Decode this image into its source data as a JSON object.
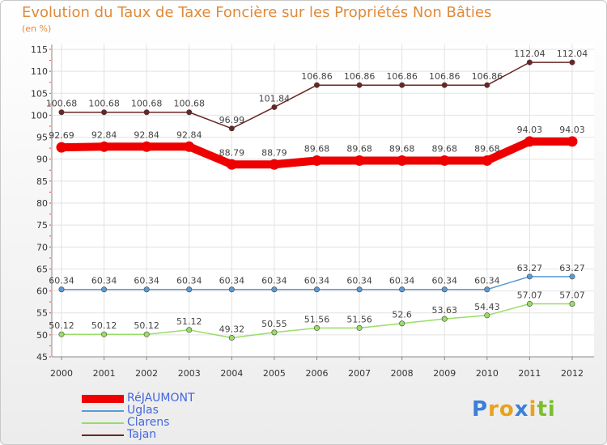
{
  "title": "Evolution du Taux de Taxe Foncière sur les Propriétés Non Bâties",
  "unit_label": "(en %)",
  "logo": {
    "text": "Proxiti",
    "letters": [
      "P",
      "r",
      "o",
      "x",
      "i",
      "t",
      "i"
    ],
    "colors": [
      "#3b7fd9",
      "#e8a21c",
      "#e8a21c",
      "#3b7fd9",
      "#e8a21c",
      "#7cbf2e",
      "#7cbf2e"
    ]
  },
  "chart_data": {
    "type": "line",
    "categories": [
      "2000",
      "2001",
      "2002",
      "2003",
      "2004",
      "2005",
      "2006",
      "2007",
      "2008",
      "2009",
      "2010",
      "2011",
      "2012"
    ],
    "ylim": [
      45,
      115
    ],
    "y_ticks": [
      45,
      50,
      55,
      60,
      65,
      70,
      75,
      80,
      85,
      90,
      95,
      100,
      105,
      110,
      115
    ],
    "grid": true,
    "legend_position": "bottom-left",
    "series": [
      {
        "name": "Tajan",
        "color": "#6b2525",
        "values": [
          100.68,
          100.68,
          100.68,
          100.68,
          96.99,
          101.84,
          106.86,
          106.86,
          106.86,
          106.86,
          106.86,
          112.04,
          112.04
        ],
        "labels": [
          "100.68",
          "100.68",
          "100.68",
          "100.68",
          "96.99",
          "101.84",
          "106.86",
          "106.86",
          "106.86",
          "106.86",
          "106.86",
          "112.04",
          "112.04"
        ]
      },
      {
        "name": "RéJAUMONT",
        "color": "#ee0000",
        "values": [
          92.69,
          92.84,
          92.84,
          92.84,
          88.79,
          88.79,
          89.68,
          89.68,
          89.68,
          89.68,
          89.68,
          94.03,
          94.03
        ],
        "labels": [
          "92.69",
          "92.84",
          "92.84",
          "92.84",
          "88.79",
          "88.79",
          "89.68",
          "89.68",
          "89.68",
          "89.68",
          "89.68",
          "94.03",
          "94.03"
        ]
      },
      {
        "name": "Uglas",
        "color": "#5b9bd5",
        "values": [
          60.34,
          60.34,
          60.34,
          60.34,
          60.34,
          60.34,
          60.34,
          60.34,
          60.34,
          60.34,
          60.34,
          63.27,
          63.27
        ],
        "labels": [
          "60.34",
          "60.34",
          "60.34",
          "60.34",
          "60.34",
          "60.34",
          "60.34",
          "60.34",
          "60.34",
          "60.34",
          "60.34",
          "63.27",
          "63.27"
        ]
      },
      {
        "name": "Clarens",
        "color": "#99dd66",
        "values": [
          50.12,
          50.12,
          50.12,
          51.12,
          49.32,
          50.55,
          51.56,
          51.56,
          52.6,
          53.63,
          54.43,
          57.07,
          57.07
        ],
        "labels": [
          "50.12",
          "50.12",
          "50.12",
          "51.12",
          "49.32",
          "50.55",
          "51.56",
          "51.56",
          "52.6",
          "53.63",
          "54.43",
          "57.07",
          "57.07"
        ]
      }
    ],
    "legend_order": [
      "RéJAUMONT",
      "Uglas",
      "Clarens",
      "Tajan"
    ]
  }
}
